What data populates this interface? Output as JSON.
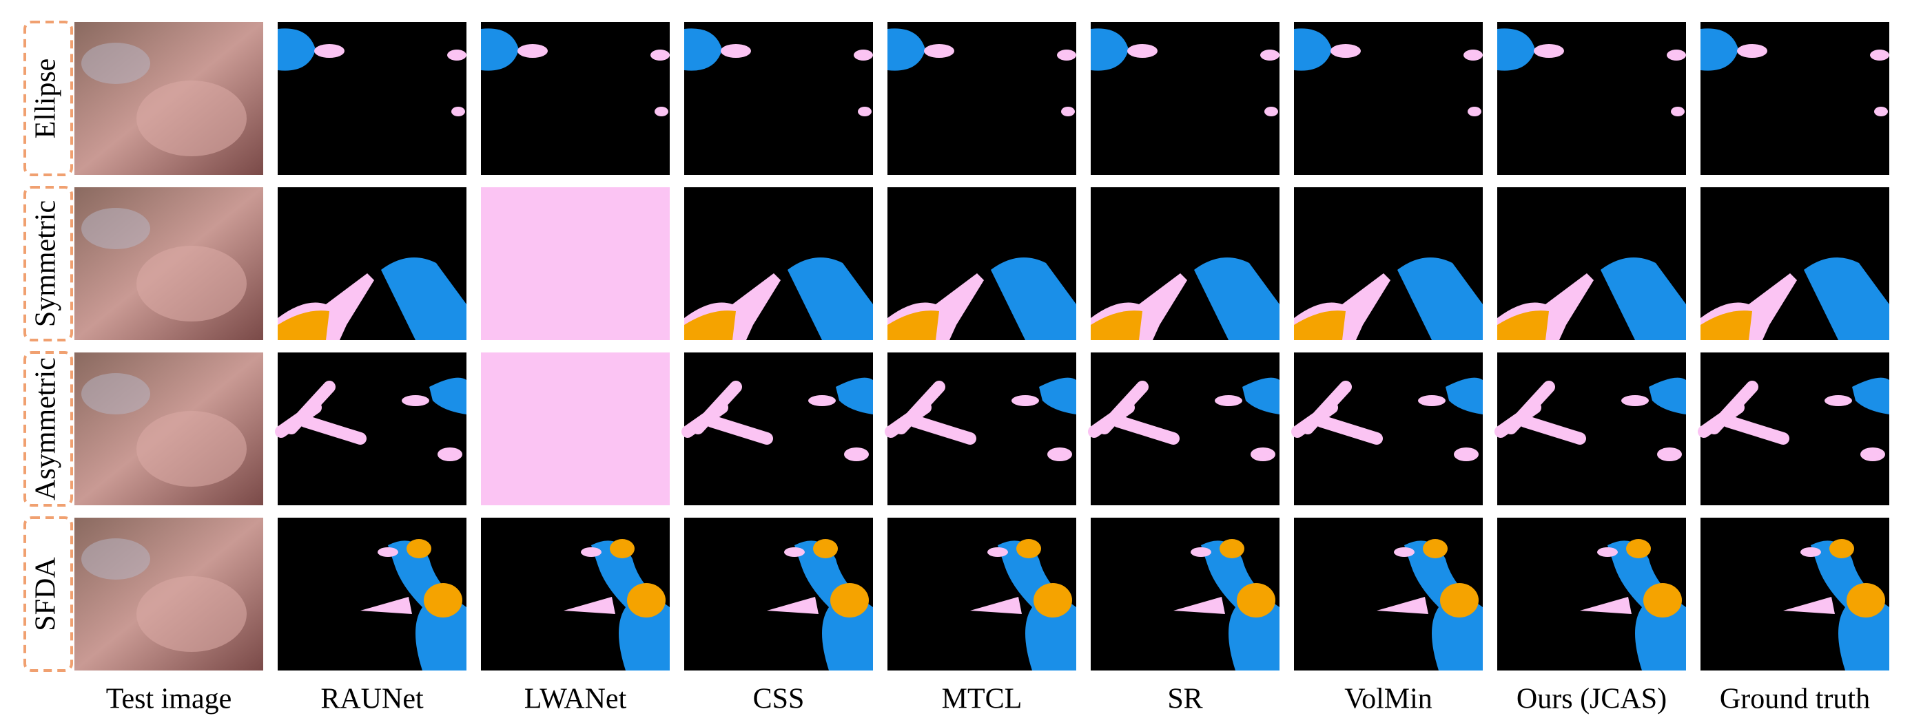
{
  "row_labels": [
    "Ellipse",
    "Symmetric",
    "Asymmetric",
    "SFDA"
  ],
  "column_labels": [
    "Test image",
    "RAUNet",
    "LWANet",
    "CSS",
    "MTCL",
    "SR",
    "VolMin",
    "Ours (JCAS)",
    "Ground truth"
  ]
}
